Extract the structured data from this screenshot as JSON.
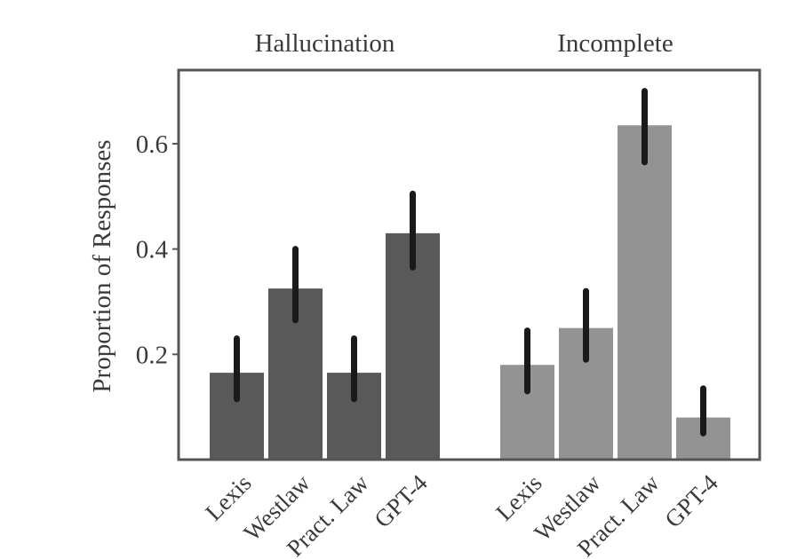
{
  "chart_data": {
    "type": "bar",
    "ylabel": "Proportion of Responses",
    "yticks": [
      0.2,
      0.4,
      0.6
    ],
    "ylim": [
      0.0,
      0.73
    ],
    "grid": false,
    "groups": [
      {
        "title": "Hallucination",
        "color": "#595959",
        "categories": [
          "Lexis",
          "Westlaw",
          "Pract. Law",
          "GPT-4"
        ],
        "values": [
          0.165,
          0.325,
          0.165,
          0.43
        ],
        "err_low": [
          0.115,
          0.265,
          0.115,
          0.365
        ],
        "err_high": [
          0.23,
          0.4,
          0.23,
          0.505
        ]
      },
      {
        "title": "Incomplete",
        "color": "#939393",
        "categories": [
          "Lexis",
          "Westlaw",
          "Pract. Law",
          "GPT-4"
        ],
        "values": [
          0.18,
          0.25,
          0.635,
          0.08
        ],
        "err_low": [
          0.13,
          0.19,
          0.565,
          0.05
        ],
        "err_high": [
          0.245,
          0.32,
          0.7,
          0.135
        ]
      }
    ]
  }
}
